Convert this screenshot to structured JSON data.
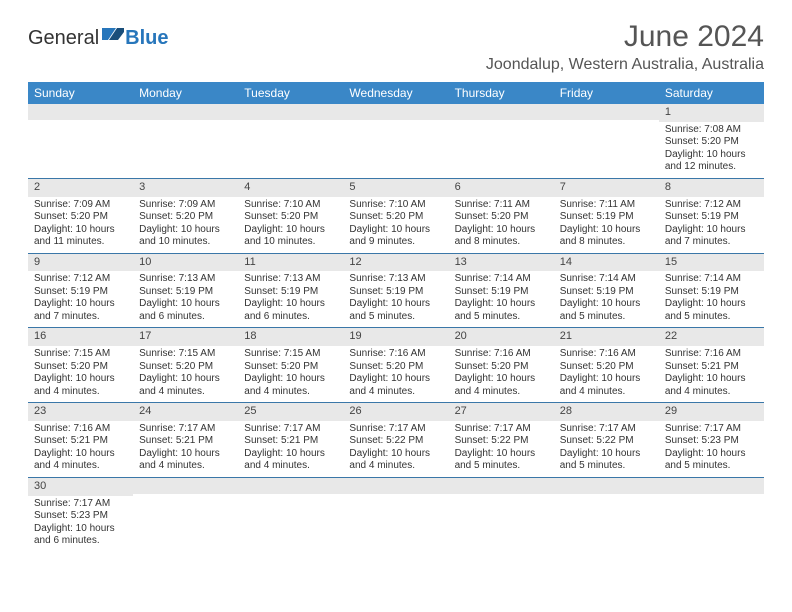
{
  "logo": {
    "text1": "General",
    "text2": "Blue"
  },
  "title": "June 2024",
  "location": "Joondalup, Western Australia, Australia",
  "colors": {
    "header_bg": "#3a87c7",
    "header_text": "#ffffff",
    "daynum_bg": "#e8e8e8",
    "border": "#3a77a8",
    "logo_blue": "#2776bb"
  },
  "daysOfWeek": [
    "Sunday",
    "Monday",
    "Tuesday",
    "Wednesday",
    "Thursday",
    "Friday",
    "Saturday"
  ],
  "weeks": [
    [
      {
        "n": "",
        "sr": "",
        "ss": "",
        "dl": ""
      },
      {
        "n": "",
        "sr": "",
        "ss": "",
        "dl": ""
      },
      {
        "n": "",
        "sr": "",
        "ss": "",
        "dl": ""
      },
      {
        "n": "",
        "sr": "",
        "ss": "",
        "dl": ""
      },
      {
        "n": "",
        "sr": "",
        "ss": "",
        "dl": ""
      },
      {
        "n": "",
        "sr": "",
        "ss": "",
        "dl": ""
      },
      {
        "n": "1",
        "sr": "Sunrise: 7:08 AM",
        "ss": "Sunset: 5:20 PM",
        "dl": "Daylight: 10 hours and 12 minutes."
      }
    ],
    [
      {
        "n": "2",
        "sr": "Sunrise: 7:09 AM",
        "ss": "Sunset: 5:20 PM",
        "dl": "Daylight: 10 hours and 11 minutes."
      },
      {
        "n": "3",
        "sr": "Sunrise: 7:09 AM",
        "ss": "Sunset: 5:20 PM",
        "dl": "Daylight: 10 hours and 10 minutes."
      },
      {
        "n": "4",
        "sr": "Sunrise: 7:10 AM",
        "ss": "Sunset: 5:20 PM",
        "dl": "Daylight: 10 hours and 10 minutes."
      },
      {
        "n": "5",
        "sr": "Sunrise: 7:10 AM",
        "ss": "Sunset: 5:20 PM",
        "dl": "Daylight: 10 hours and 9 minutes."
      },
      {
        "n": "6",
        "sr": "Sunrise: 7:11 AM",
        "ss": "Sunset: 5:20 PM",
        "dl": "Daylight: 10 hours and 8 minutes."
      },
      {
        "n": "7",
        "sr": "Sunrise: 7:11 AM",
        "ss": "Sunset: 5:19 PM",
        "dl": "Daylight: 10 hours and 8 minutes."
      },
      {
        "n": "8",
        "sr": "Sunrise: 7:12 AM",
        "ss": "Sunset: 5:19 PM",
        "dl": "Daylight: 10 hours and 7 minutes."
      }
    ],
    [
      {
        "n": "9",
        "sr": "Sunrise: 7:12 AM",
        "ss": "Sunset: 5:19 PM",
        "dl": "Daylight: 10 hours and 7 minutes."
      },
      {
        "n": "10",
        "sr": "Sunrise: 7:13 AM",
        "ss": "Sunset: 5:19 PM",
        "dl": "Daylight: 10 hours and 6 minutes."
      },
      {
        "n": "11",
        "sr": "Sunrise: 7:13 AM",
        "ss": "Sunset: 5:19 PM",
        "dl": "Daylight: 10 hours and 6 minutes."
      },
      {
        "n": "12",
        "sr": "Sunrise: 7:13 AM",
        "ss": "Sunset: 5:19 PM",
        "dl": "Daylight: 10 hours and 5 minutes."
      },
      {
        "n": "13",
        "sr": "Sunrise: 7:14 AM",
        "ss": "Sunset: 5:19 PM",
        "dl": "Daylight: 10 hours and 5 minutes."
      },
      {
        "n": "14",
        "sr": "Sunrise: 7:14 AM",
        "ss": "Sunset: 5:19 PM",
        "dl": "Daylight: 10 hours and 5 minutes."
      },
      {
        "n": "15",
        "sr": "Sunrise: 7:14 AM",
        "ss": "Sunset: 5:19 PM",
        "dl": "Daylight: 10 hours and 5 minutes."
      }
    ],
    [
      {
        "n": "16",
        "sr": "Sunrise: 7:15 AM",
        "ss": "Sunset: 5:20 PM",
        "dl": "Daylight: 10 hours and 4 minutes."
      },
      {
        "n": "17",
        "sr": "Sunrise: 7:15 AM",
        "ss": "Sunset: 5:20 PM",
        "dl": "Daylight: 10 hours and 4 minutes."
      },
      {
        "n": "18",
        "sr": "Sunrise: 7:15 AM",
        "ss": "Sunset: 5:20 PM",
        "dl": "Daylight: 10 hours and 4 minutes."
      },
      {
        "n": "19",
        "sr": "Sunrise: 7:16 AM",
        "ss": "Sunset: 5:20 PM",
        "dl": "Daylight: 10 hours and 4 minutes."
      },
      {
        "n": "20",
        "sr": "Sunrise: 7:16 AM",
        "ss": "Sunset: 5:20 PM",
        "dl": "Daylight: 10 hours and 4 minutes."
      },
      {
        "n": "21",
        "sr": "Sunrise: 7:16 AM",
        "ss": "Sunset: 5:20 PM",
        "dl": "Daylight: 10 hours and 4 minutes."
      },
      {
        "n": "22",
        "sr": "Sunrise: 7:16 AM",
        "ss": "Sunset: 5:21 PM",
        "dl": "Daylight: 10 hours and 4 minutes."
      }
    ],
    [
      {
        "n": "23",
        "sr": "Sunrise: 7:16 AM",
        "ss": "Sunset: 5:21 PM",
        "dl": "Daylight: 10 hours and 4 minutes."
      },
      {
        "n": "24",
        "sr": "Sunrise: 7:17 AM",
        "ss": "Sunset: 5:21 PM",
        "dl": "Daylight: 10 hours and 4 minutes."
      },
      {
        "n": "25",
        "sr": "Sunrise: 7:17 AM",
        "ss": "Sunset: 5:21 PM",
        "dl": "Daylight: 10 hours and 4 minutes."
      },
      {
        "n": "26",
        "sr": "Sunrise: 7:17 AM",
        "ss": "Sunset: 5:22 PM",
        "dl": "Daylight: 10 hours and 4 minutes."
      },
      {
        "n": "27",
        "sr": "Sunrise: 7:17 AM",
        "ss": "Sunset: 5:22 PM",
        "dl": "Daylight: 10 hours and 5 minutes."
      },
      {
        "n": "28",
        "sr": "Sunrise: 7:17 AM",
        "ss": "Sunset: 5:22 PM",
        "dl": "Daylight: 10 hours and 5 minutes."
      },
      {
        "n": "29",
        "sr": "Sunrise: 7:17 AM",
        "ss": "Sunset: 5:23 PM",
        "dl": "Daylight: 10 hours and 5 minutes."
      }
    ],
    [
      {
        "n": "30",
        "sr": "Sunrise: 7:17 AM",
        "ss": "Sunset: 5:23 PM",
        "dl": "Daylight: 10 hours and 6 minutes."
      },
      {
        "n": "",
        "sr": "",
        "ss": "",
        "dl": ""
      },
      {
        "n": "",
        "sr": "",
        "ss": "",
        "dl": ""
      },
      {
        "n": "",
        "sr": "",
        "ss": "",
        "dl": ""
      },
      {
        "n": "",
        "sr": "",
        "ss": "",
        "dl": ""
      },
      {
        "n": "",
        "sr": "",
        "ss": "",
        "dl": ""
      },
      {
        "n": "",
        "sr": "",
        "ss": "",
        "dl": ""
      }
    ]
  ]
}
